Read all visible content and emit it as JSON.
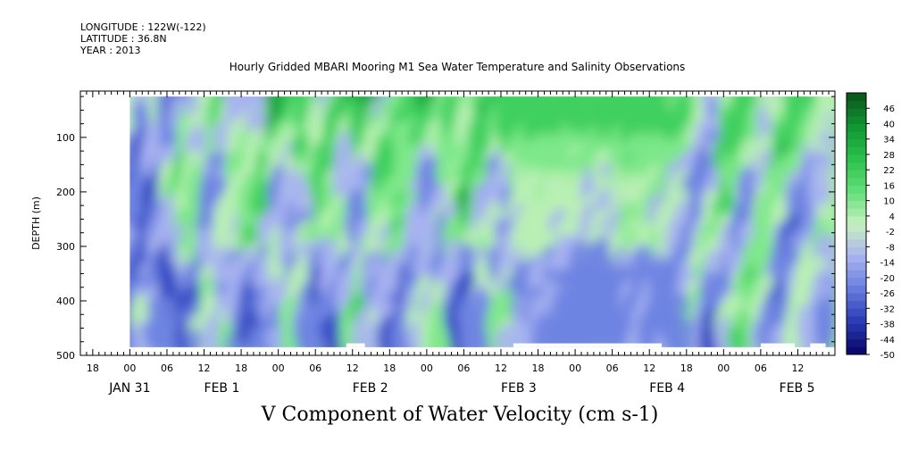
{
  "header": {
    "longitude": "LONGITUDE : 122W(-122)",
    "latitude": "LATITUDE : 36.8N",
    "year": "YEAR : 2013"
  },
  "chart_data": {
    "type": "heatmap",
    "title": "Hourly Gridded MBARI Mooring M1 Sea Water Temperature and Salinity Observations",
    "xlabel": "V Component of Water Velocity (cm s-1)",
    "ylabel": "DEPTH (m)",
    "x_hour_ticks": [
      "18",
      "00",
      "06",
      "12",
      "18",
      "00",
      "06",
      "12",
      "18",
      "00",
      "06",
      "12",
      "18",
      "00",
      "06",
      "12",
      "18",
      "00",
      "06",
      "12"
    ],
    "x_day_labels": [
      {
        "label": "JAN 31",
        "hour": 0
      },
      {
        "label": "FEB  1",
        "hour": 12
      },
      {
        "label": "FEB  2",
        "hour": 36
      },
      {
        "label": "FEB  3",
        "hour": 60
      },
      {
        "label": "FEB  4",
        "hour": 84
      },
      {
        "label": "FEB  5",
        "hour": 105
      }
    ],
    "x_range_hours": [
      -8,
      114
    ],
    "data_range_hours": [
      0,
      114
    ],
    "y_ticks": [
      100,
      200,
      300,
      400,
      500
    ],
    "y_range": [
      15,
      500
    ],
    "y_reversed": true,
    "data_depth_range": [
      25,
      485
    ],
    "colorbar_levels": [
      -50,
      -44,
      -38,
      -32,
      -26,
      -20,
      -14,
      -8,
      -2,
      4,
      10,
      16,
      22,
      28,
      34,
      40,
      46
    ],
    "colorbar_range": [
      -50,
      52
    ],
    "colorbar_colors": [
      "#0a0a6e",
      "#2d3fb8",
      "#6b7fe0",
      "#aab5f0",
      "#c8f0c0",
      "#64e07a",
      "#2ec24e",
      "#119a34",
      "#0a5a1e"
    ]
  }
}
